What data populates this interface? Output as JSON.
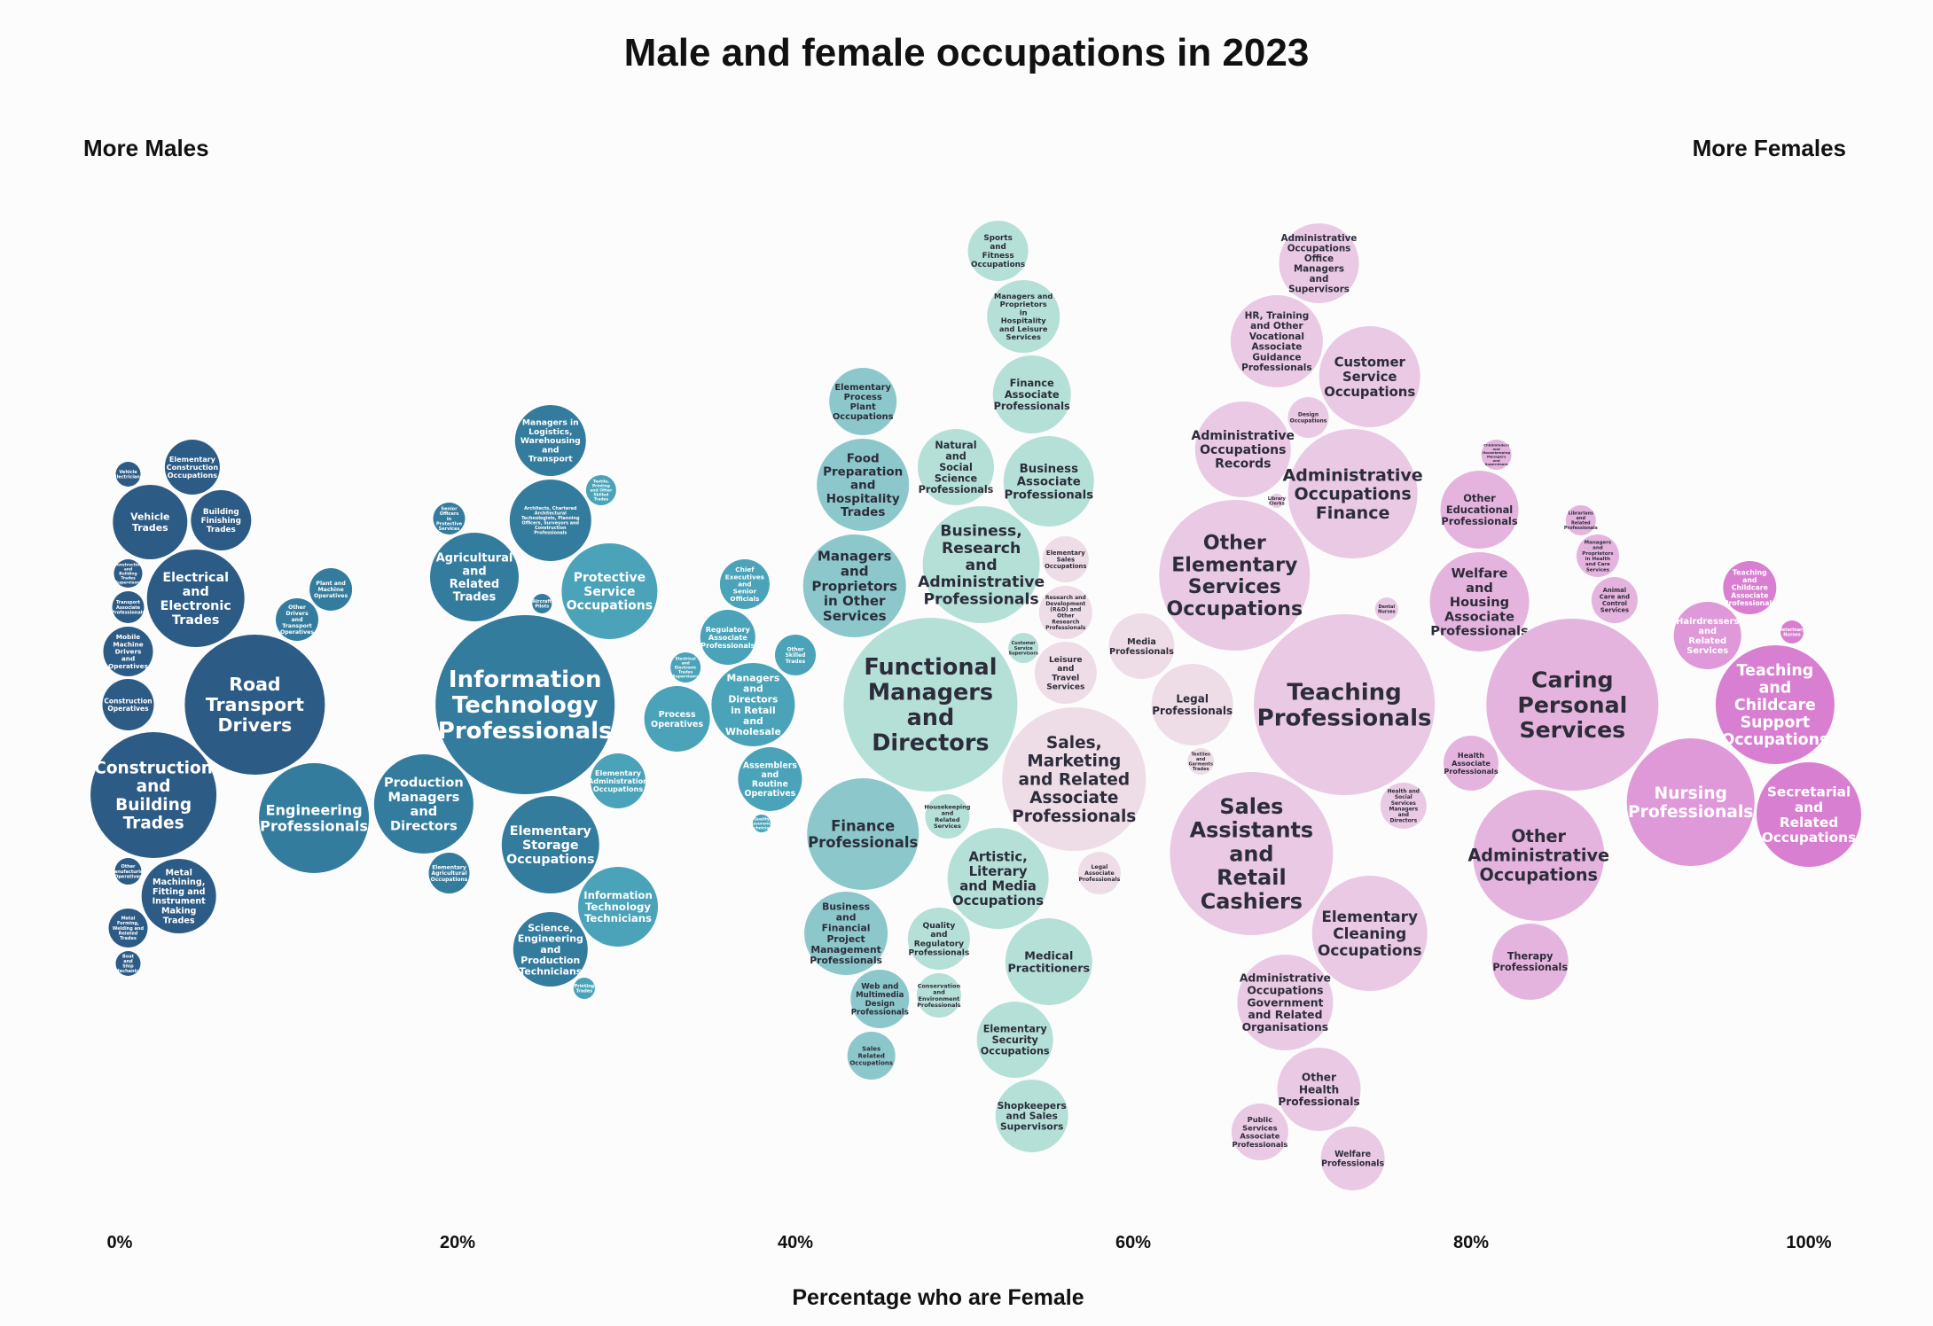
{
  "chart_data": {
    "type": "scatter",
    "title": "Male and female occupations in 2023",
    "left_label": "More Males",
    "right_label": "More Females",
    "xlabel": "Percentage who are Female",
    "xlim": [
      0,
      100
    ],
    "x_ticks": [
      "0%",
      "20%",
      "40%",
      "60%",
      "80%",
      "100%"
    ],
    "colors": {
      "q1": "#2c5b85",
      "q2": "#347c9e",
      "q3": "#4aa3b8",
      "q4": "#8cc8cb",
      "q5": "#b4e0d7",
      "q6": "#eedce6",
      "q7": "#e9c9e3",
      "q8": "#e5b4de",
      "q9": "#df98d8",
      "q10": "#d97fd1"
    },
    "bubbles": [
      {
        "label": "Road Transport Drivers",
        "x": 8,
        "size": 79
      },
      {
        "label": "Construction and Building Trades",
        "x": 2,
        "size": 71
      },
      {
        "label": "Electrical and Electronic Trades",
        "x": 4.5,
        "size": 55
      },
      {
        "label": "Metal Machining, Fitting and Instrument Making Trades",
        "x": 3.5,
        "size": 42
      },
      {
        "label": "Vehicle Trades",
        "x": 1.8,
        "size": 42
      },
      {
        "label": "Building Finishing Trades",
        "x": 6,
        "size": 34
      },
      {
        "label": "Elementary Construction Occupations",
        "x": 4.3,
        "size": 31
      },
      {
        "label": "Construction Operatives",
        "x": 0.5,
        "size": 29
      },
      {
        "label": "Mobile Machine Drivers and Operatives",
        "x": 0.5,
        "size": 28
      },
      {
        "label": "Metal Forming, Welding and Related Trades",
        "x": 0.5,
        "size": 22
      },
      {
        "label": "Transport Associate Professionals",
        "x": 0.5,
        "size": 18
      },
      {
        "label": "Construction and Building Trades Supervisors",
        "x": 0.5,
        "size": 16
      },
      {
        "label": "Other Manufacturing Operatives",
        "x": 0.5,
        "size": 15
      },
      {
        "label": "Vehicle Electricians",
        "x": 0.5,
        "size": 14
      },
      {
        "label": "Boat and Ship Mechanics",
        "x": 0.5,
        "size": 14
      },
      {
        "label": "Engineering Professionals",
        "x": 11.5,
        "size": 62
      },
      {
        "label": "Other Drivers and Transport Operatives",
        "x": 10.5,
        "size": 24
      },
      {
        "label": "Plant and Machine Operatives",
        "x": 12.5,
        "size": 24
      },
      {
        "label": "Information Technology Professionals",
        "x": 24,
        "size": 101
      },
      {
        "label": "Production Managers and Directors",
        "x": 18,
        "size": 56
      },
      {
        "label": "Agricultural and Related Trades",
        "x": 21,
        "size": 50
      },
      {
        "label": "Architects, Chartered Architectural Technologists, Planning Officers, Surveyors and Construction Professionals",
        "x": 25.5,
        "size": 46
      },
      {
        "label": "Elementary Storage Occupations",
        "x": 25.5,
        "size": 55
      },
      {
        "label": "Science, Engineering and Production Technicians",
        "x": 25.5,
        "size": 42
      },
      {
        "label": "Managers in Logistics, Warehousing and Transport",
        "x": 25.5,
        "size": 40
      },
      {
        "label": "Senior Officers in Protective Services",
        "x": 19.5,
        "size": 18
      },
      {
        "label": "Elementary Agricultural Occupations",
        "x": 19.5,
        "size": 23
      },
      {
        "label": "Information Technology Technicians",
        "x": 29.5,
        "size": 45
      },
      {
        "label": "Elementary Administration Occupations",
        "x": 29.5,
        "size": 31
      },
      {
        "label": "Protective Service Occupations",
        "x": 29,
        "size": 54
      },
      {
        "label": "Process Operatives",
        "x": 33,
        "size": 37
      },
      {
        "label": "Printing Trades",
        "x": 27.5,
        "size": 12
      },
      {
        "label": "Textile, Printing and Other Skilled Trades",
        "x": 28.5,
        "size": 17
      },
      {
        "label": "Electrical and Electronic Trades Supervisors",
        "x": 33.5,
        "size": 17
      },
      {
        "label": "Aircraft Pilots",
        "x": 25,
        "size": 11
      },
      {
        "label": "Chief Executives and Senior Officials",
        "x": 37,
        "size": 28
      },
      {
        "label": "Assemblers and Routine Operatives",
        "x": 38.5,
        "size": 36
      },
      {
        "label": "Managers and Directors in Retail and Wholesale",
        "x": 37.5,
        "size": 47
      },
      {
        "label": "Other Skilled Trades",
        "x": 40,
        "size": 23
      },
      {
        "label": "Regulatory Associate Professionals",
        "x": 36,
        "size": 31
      },
      {
        "label": "Quality Assurance Technicians",
        "x": 38,
        "size": 10
      },
      {
        "label": "Sales Related Occupations",
        "x": 44.5,
        "size": 27
      },
      {
        "label": "Web and Multimedia Design Professionals",
        "x": 45,
        "size": 33
      },
      {
        "label": "Business and Financial Project Management Professionals",
        "x": 43,
        "size": 47
      },
      {
        "label": "Finance Professionals",
        "x": 44,
        "size": 63
      },
      {
        "label": "Managers and Proprietors in Other Services",
        "x": 43.5,
        "size": 58
      },
      {
        "label": "Food Preparation and Hospitality Trades",
        "x": 44,
        "size": 52
      },
      {
        "label": "Elementary Process Plant Occupations",
        "x": 44,
        "size": 38
      },
      {
        "label": "Functional Managers and Directors",
        "x": 48,
        "size": 98
      },
      {
        "label": "Quality and Regulatory Professionals",
        "x": 48.5,
        "size": 35
      },
      {
        "label": "Housekeeping and Related Services",
        "x": 49,
        "size": 25
      },
      {
        "label": "Business, Research and Administrative Professionals",
        "x": 51,
        "size": 66
      },
      {
        "label": "Natural and Social Science Professionals",
        "x": 49.5,
        "size": 43
      },
      {
        "label": "Conservation and Environment Professionals",
        "x": 48.5,
        "size": 25
      },
      {
        "label": "Sports and Fitness Occupations",
        "x": 52,
        "size": 34
      },
      {
        "label": "Managers and Proprietors in Hospitality and Leisure Services",
        "x": 53.5,
        "size": 41
      },
      {
        "label": "Finance Associate Professionals",
        "x": 54,
        "size": 44
      },
      {
        "label": "Artistic, Literary and Media Occupations",
        "x": 52,
        "size": 57
      },
      {
        "label": "Business Associate Professionals",
        "x": 55,
        "size": 51
      },
      {
        "label": "Medical Practitioners",
        "x": 55,
        "size": 49
      },
      {
        "label": "Elementary Security Occupations",
        "x": 53,
        "size": 43
      },
      {
        "label": "Shopkeepers and Sales Supervisors",
        "x": 54,
        "size": 41
      },
      {
        "label": "Customer Service Supervisors",
        "x": 53.5,
        "size": 17
      },
      {
        "label": "Research and Development (R&D) and Other Research Professionals",
        "x": 56,
        "size": 30
      },
      {
        "label": "Leisure and Travel Services",
        "x": 56,
        "size": 35
      },
      {
        "label": "Sales, Marketing and Related Associate Professionals",
        "x": 56.5,
        "size": 81
      },
      {
        "label": "Legal Associate Professionals",
        "x": 58,
        "size": 24
      },
      {
        "label": "Elementary Sales Occupations",
        "x": 56,
        "size": 26
      },
      {
        "label": "Media Professionals",
        "x": 60.5,
        "size": 37
      },
      {
        "label": "Legal Professionals",
        "x": 63.5,
        "size": 46
      },
      {
        "label": "Textiles and Garments Trades",
        "x": 64,
        "size": 15
      },
      {
        "label": "Sales Assistants and Retail Cashiers",
        "x": 67,
        "size": 92
      },
      {
        "label": "Other Elementary Services Occupations",
        "x": 66,
        "size": 85
      },
      {
        "label": "Administrative Occupations Records",
        "x": 66.5,
        "size": 54
      },
      {
        "label": "HR, Training and Other Vocational Associate Guidance Professionals",
        "x": 68.5,
        "size": 52
      },
      {
        "label": "Administrative Occupations Office Managers and Supervisors",
        "x": 71,
        "size": 45
      },
      {
        "label": "Design Occupations",
        "x": 71,
        "size": 23
      },
      {
        "label": "Public Services Associate Professionals",
        "x": 67.5,
        "size": 32
      },
      {
        "label": "Welfare Professionals",
        "x": 73,
        "size": 36
      },
      {
        "label": "Other Health Professionals",
        "x": 71,
        "size": 47
      },
      {
        "label": "Administrative Occupations Government and Related Organisations",
        "x": 69,
        "size": 54
      },
      {
        "label": "Elementary Cleaning Occupations",
        "x": 74,
        "size": 65
      },
      {
        "label": "Teaching Professionals",
        "x": 72.5,
        "size": 102
      },
      {
        "label": "Administrative Occupations Finance",
        "x": 73,
        "size": 73
      },
      {
        "label": "Customer Service Occupations",
        "x": 74,
        "size": 57
      },
      {
        "label": "Library Clerks",
        "x": 68.5,
        "size": 8
      },
      {
        "label": "Dental Nurses",
        "x": 75,
        "size": 13
      },
      {
        "label": "Health and Social Services Managers and Directors",
        "x": 76,
        "size": 26
      },
      {
        "label": "Health Associate Professionals",
        "x": 80,
        "size": 31
      },
      {
        "label": "Welfare and Housing Associate Professionals",
        "x": 80.5,
        "size": 56
      },
      {
        "label": "Other Educational Professionals",
        "x": 80.5,
        "size": 44
      },
      {
        "label": "Therapy Professionals",
        "x": 83.5,
        "size": 43
      },
      {
        "label": "Childminders and Housekeeping Managers and Supervisors",
        "x": 81.5,
        "size": 17
      },
      {
        "label": "Other Administrative Occupations",
        "x": 84,
        "size": 74
      },
      {
        "label": "Caring Personal Services",
        "x": 86,
        "size": 97
      },
      {
        "label": "Animal Care and Control Services",
        "x": 88.5,
        "size": 26
      },
      {
        "label": "Managers and Proprietors in Health and Care Services",
        "x": 87.5,
        "size": 24
      },
      {
        "label": "Librarians and Related Professionals",
        "x": 86.5,
        "size": 17
      },
      {
        "label": "Nursing Professionals",
        "x": 93,
        "size": 72
      },
      {
        "label": "Hairdressers and Related Services",
        "x": 94,
        "size": 38
      },
      {
        "label": "Secretarial and Related Occupations",
        "x": 100,
        "size": 59
      },
      {
        "label": "Teaching and Childcare Support Occupations",
        "x": 98,
        "size": 67
      },
      {
        "label": "Teaching and Childcare Associate Professionals",
        "x": 96.5,
        "size": 30
      },
      {
        "label": "Veterinary Nurses",
        "x": 99,
        "size": 13
      }
    ]
  }
}
